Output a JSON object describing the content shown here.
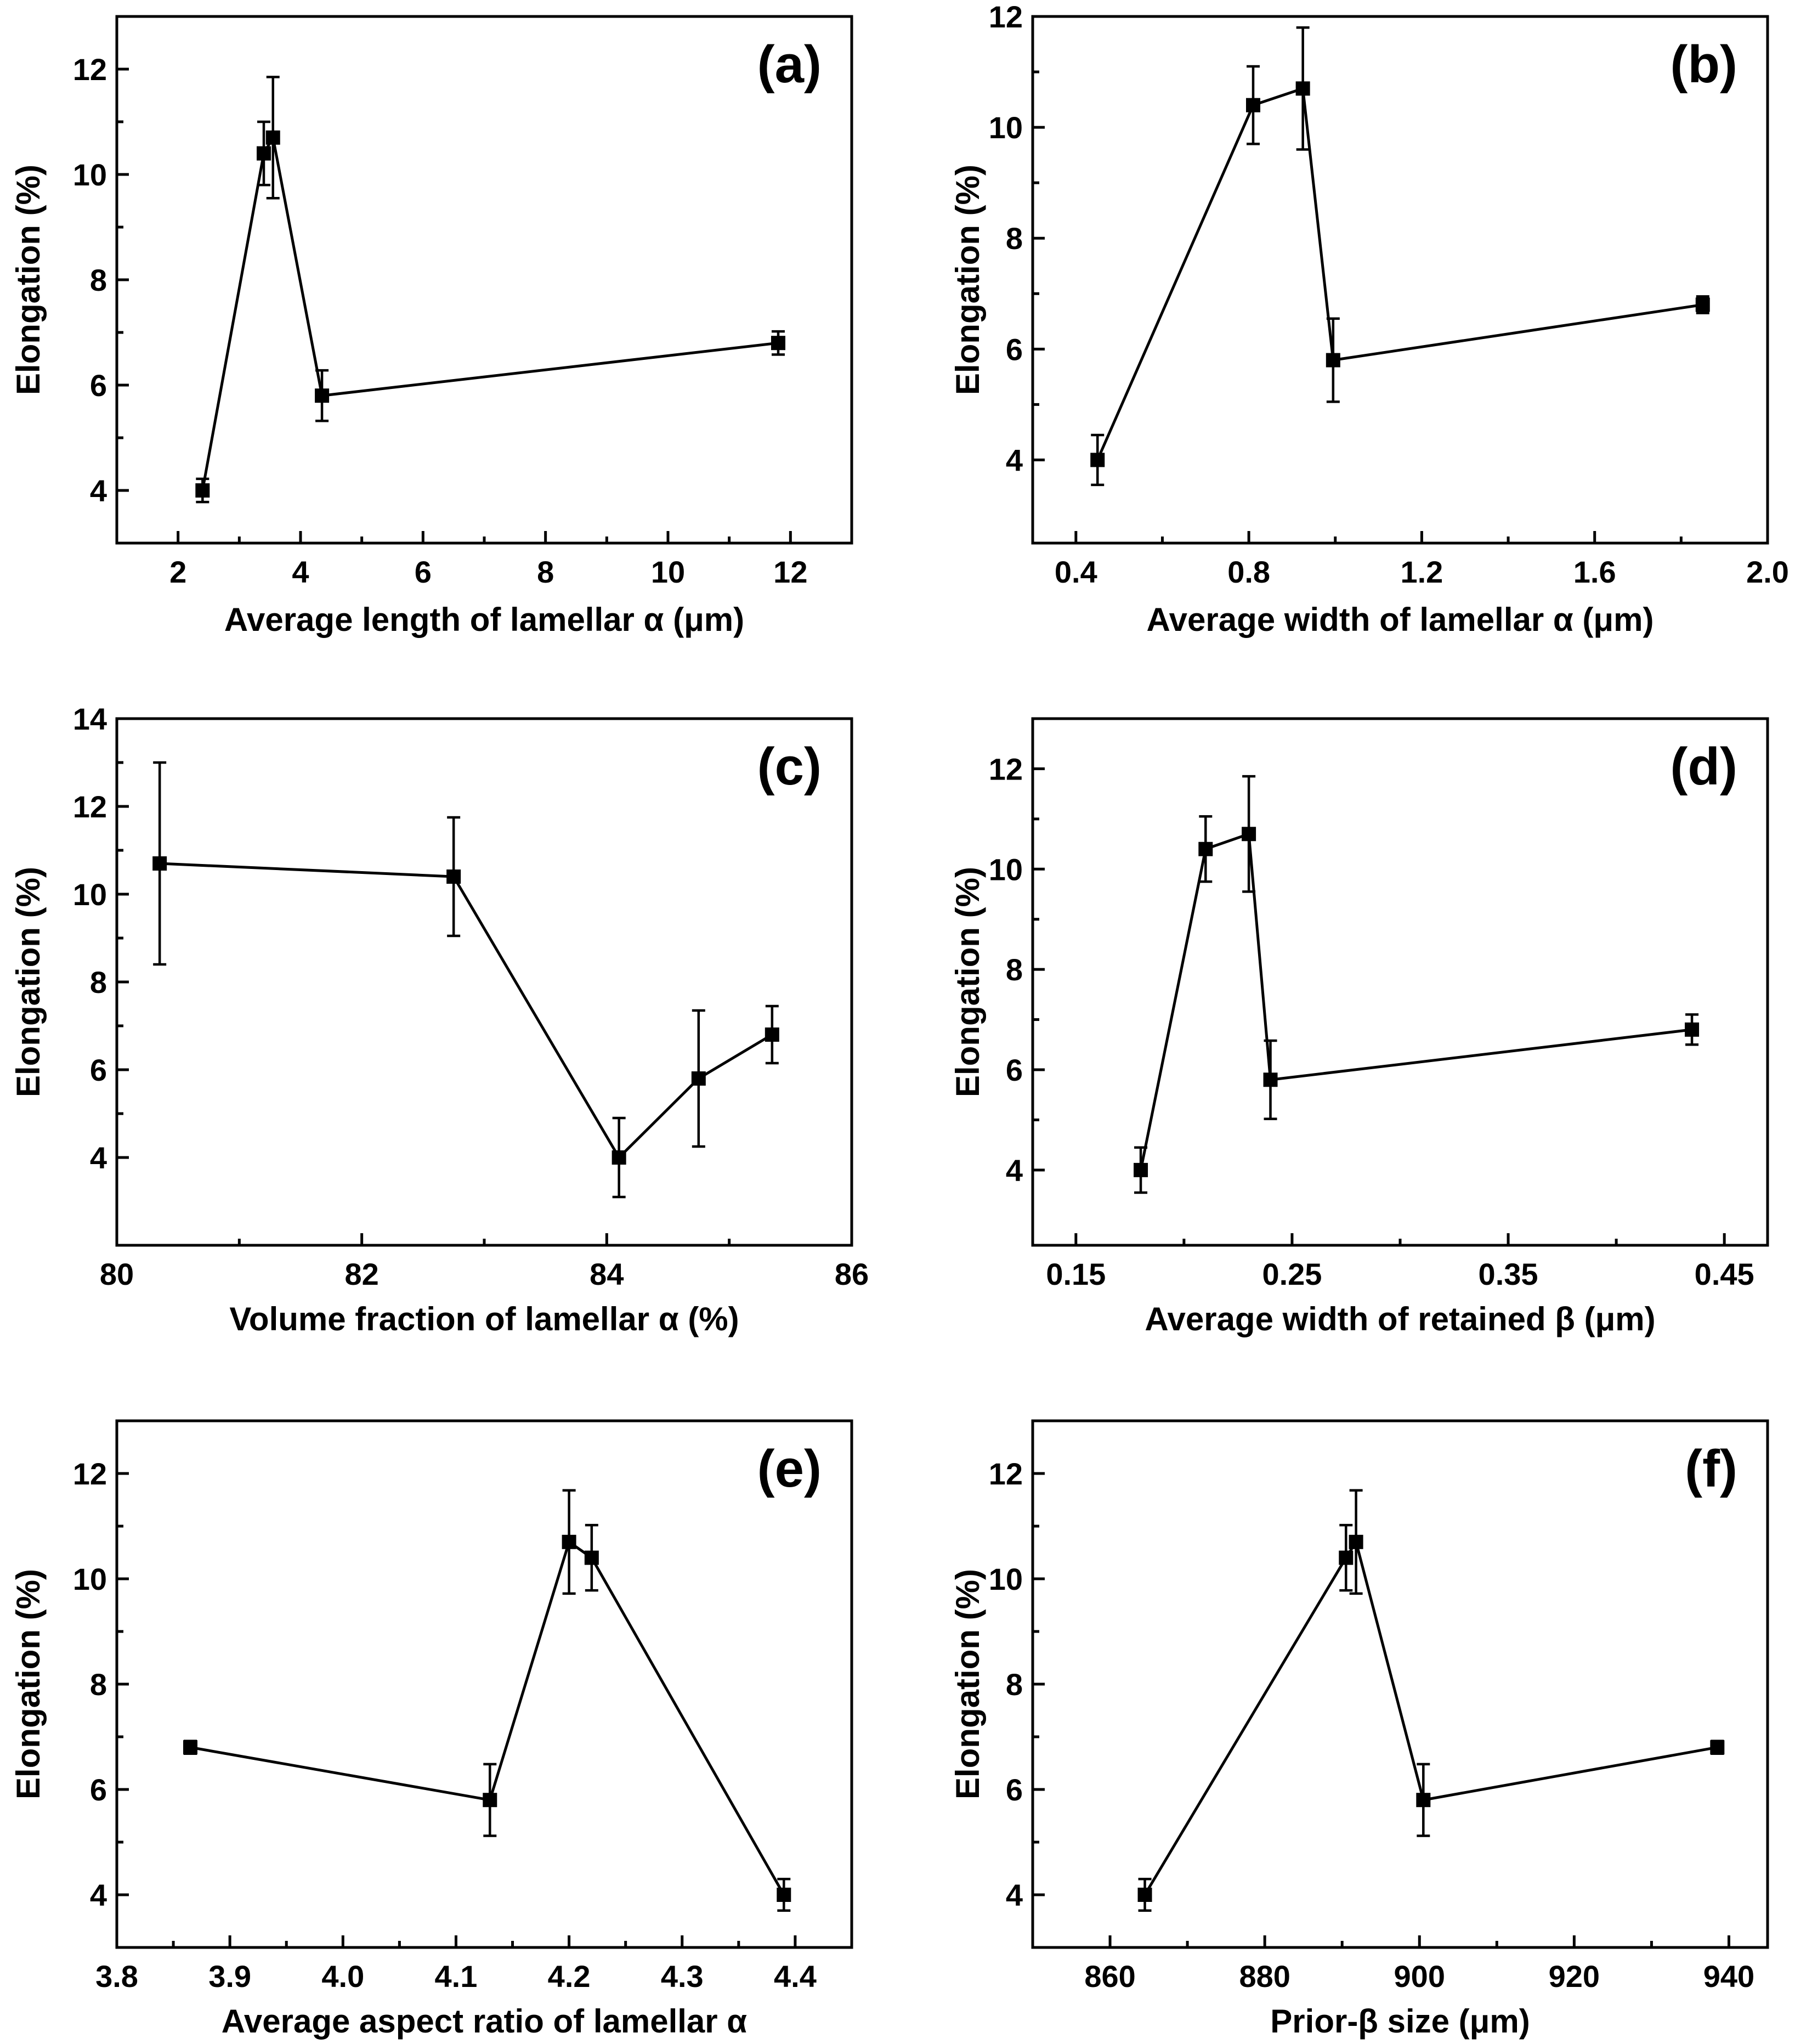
{
  "chart_data": [
    {
      "type": "line",
      "panel_label": "(a)",
      "xlabel": "Average length of lamellar α (μm)",
      "ylabel": "Elongation (%)",
      "xlim": [
        1,
        13
      ],
      "ylim": [
        3,
        13
      ],
      "xticks": [
        2,
        4,
        6,
        8,
        10,
        12
      ],
      "xtick_labels": [
        "2",
        "4",
        "6",
        "8",
        "10",
        "12"
      ],
      "yticks": [
        4,
        6,
        8,
        10,
        12
      ],
      "ytick_labels": [
        "4",
        "6",
        "8",
        "10",
        "12"
      ],
      "series": [
        {
          "name": "Elongation",
          "x": [
            2.4,
            3.4,
            3.55,
            4.35,
            11.8
          ],
          "y": [
            4.0,
            10.4,
            10.7,
            5.8,
            6.8
          ],
          "err": [
            0.22,
            0.6,
            1.15,
            0.48,
            0.22
          ]
        }
      ]
    },
    {
      "type": "line",
      "panel_label": "(b)",
      "xlabel": "Average width of lamellar α (μm)",
      "ylabel": "Elongation (%)",
      "xlim": [
        0.3,
        2.0
      ],
      "ylim": [
        2.5,
        12
      ],
      "xticks": [
        0.4,
        0.8,
        1.2,
        1.6,
        2.0
      ],
      "xtick_labels": [
        "0.4",
        "0.8",
        "1.2",
        "1.6",
        "2.0"
      ],
      "yticks": [
        4,
        6,
        8,
        10,
        12
      ],
      "ytick_labels": [
        "4",
        "6",
        "8",
        "10",
        "12"
      ],
      "series": [
        {
          "name": "Elongation",
          "x": [
            0.45,
            0.81,
            0.925,
            0.995,
            1.85
          ],
          "y": [
            4.0,
            10.4,
            10.7,
            5.8,
            6.8
          ],
          "err": [
            0.45,
            0.7,
            1.1,
            0.75,
            0.15
          ]
        }
      ]
    },
    {
      "type": "line",
      "panel_label": "(c)",
      "xlabel": "Volume fraction of lamellar α (%)",
      "ylabel": "Elongation (%)",
      "xlim": [
        80,
        86
      ],
      "ylim": [
        2,
        14
      ],
      "xticks": [
        80,
        82,
        84,
        86
      ],
      "xtick_labels": [
        "80",
        "82",
        "84",
        "86"
      ],
      "yticks": [
        4,
        6,
        8,
        10,
        12,
        14
      ],
      "ytick_labels": [
        "4",
        "6",
        "8",
        "10",
        "12",
        "14"
      ],
      "series": [
        {
          "name": "Elongation",
          "x": [
            80.35,
            82.75,
            84.1,
            84.75,
            85.35
          ],
          "y": [
            10.7,
            10.4,
            4.0,
            5.8,
            6.8
          ],
          "err": [
            2.3,
            1.35,
            0.9,
            1.55,
            0.65
          ]
        }
      ]
    },
    {
      "type": "line",
      "panel_label": "(d)",
      "xlabel": "Average width of retained β (μm)",
      "ylabel": "Elongation (%)",
      "xlim": [
        0.13,
        0.47
      ],
      "ylim": [
        2.5,
        13
      ],
      "xticks": [
        0.15,
        0.25,
        0.35,
        0.45
      ],
      "xtick_labels": [
        "0.15",
        "0.25",
        "0.35",
        "0.45"
      ],
      "yticks": [
        4,
        6,
        8,
        10,
        12
      ],
      "ytick_labels": [
        "4",
        "6",
        "8",
        "10",
        "12"
      ],
      "series": [
        {
          "name": "Elongation",
          "x": [
            0.18,
            0.21,
            0.23,
            0.24,
            0.435
          ],
          "y": [
            4.0,
            10.4,
            10.7,
            5.8,
            6.8
          ],
          "err": [
            0.45,
            0.65,
            1.15,
            0.78,
            0.3
          ]
        }
      ]
    },
    {
      "type": "line",
      "panel_label": "(e)",
      "xlabel": "Average aspect ratio of lamellar α",
      "ylabel": "Elongation (%)",
      "xlim": [
        3.8,
        4.45
      ],
      "ylim": [
        3,
        13
      ],
      "xticks": [
        3.8,
        3.9,
        4.0,
        4.1,
        4.2,
        4.3,
        4.4
      ],
      "xtick_labels": [
        "3.8",
        "3.9",
        "4.0",
        "4.1",
        "4.2",
        "4.3",
        "4.4"
      ],
      "yticks": [
        4,
        6,
        8,
        10,
        12
      ],
      "ytick_labels": [
        "4",
        "6",
        "8",
        "10",
        "12"
      ],
      "series": [
        {
          "name": "Elongation",
          "x": [
            3.865,
            4.13,
            4.2,
            4.22,
            4.39
          ],
          "y": [
            6.8,
            5.8,
            10.7,
            10.4,
            4.0
          ],
          "err": [
            0.12,
            0.68,
            0.98,
            0.62,
            0.3
          ]
        }
      ]
    },
    {
      "type": "line",
      "panel_label": "(f)",
      "xlabel": "Prior-β size (μm)",
      "ylabel": "Elongation (%)",
      "xlim": [
        850,
        945
      ],
      "ylim": [
        3,
        13
      ],
      "xticks": [
        860,
        880,
        900,
        920,
        940
      ],
      "xtick_labels": [
        "860",
        "880",
        "900",
        "920",
        "940"
      ],
      "yticks": [
        4,
        6,
        8,
        10,
        12
      ],
      "ytick_labels": [
        "4",
        "6",
        "8",
        "10",
        "12"
      ],
      "series": [
        {
          "name": "Elongation",
          "x": [
            864.5,
            890.5,
            891.8,
            900.5,
            938.5
          ],
          "y": [
            4.0,
            10.4,
            10.7,
            5.8,
            6.8
          ],
          "err": [
            0.3,
            0.62,
            0.98,
            0.68,
            0.12
          ]
        }
      ]
    }
  ]
}
